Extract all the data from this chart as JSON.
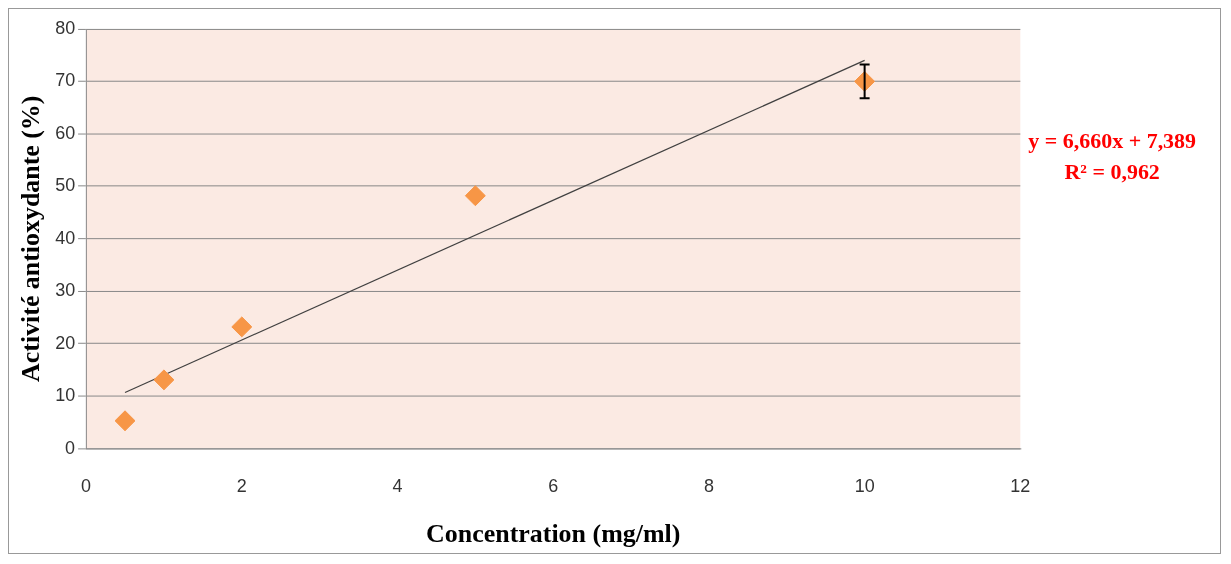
{
  "chart_data": {
    "type": "scatter",
    "xlabel": "Concentration (mg/ml)",
    "ylabel": "Activité antioxydante (%)",
    "xlim": [
      0,
      12
    ],
    "xticks": [
      0,
      2,
      4,
      6,
      8,
      10,
      12
    ],
    "ylim": [
      0,
      80
    ],
    "yticks": [
      0,
      10,
      20,
      30,
      40,
      50,
      60,
      70,
      80
    ],
    "grid": "y",
    "legend": false,
    "series": [
      {
        "color": "#f79646",
        "marker": "diamond",
        "x": [
          0.5,
          1,
          2,
          5,
          10
        ],
        "values": [
          5.3,
          13.1,
          23.2,
          48.2,
          70.0
        ],
        "errors": [
          null,
          null,
          null,
          null,
          3.2
        ]
      },
      {
        "type": "line",
        "color": "#404040",
        "marker": "none",
        "line_style": "solid",
        "x": [
          0.5,
          10
        ],
        "values": [
          10.7,
          74.0
        ]
      }
    ],
    "annotations": [
      "y = 6,660x + 7,389",
      "R² = 0,962"
    ]
  }
}
